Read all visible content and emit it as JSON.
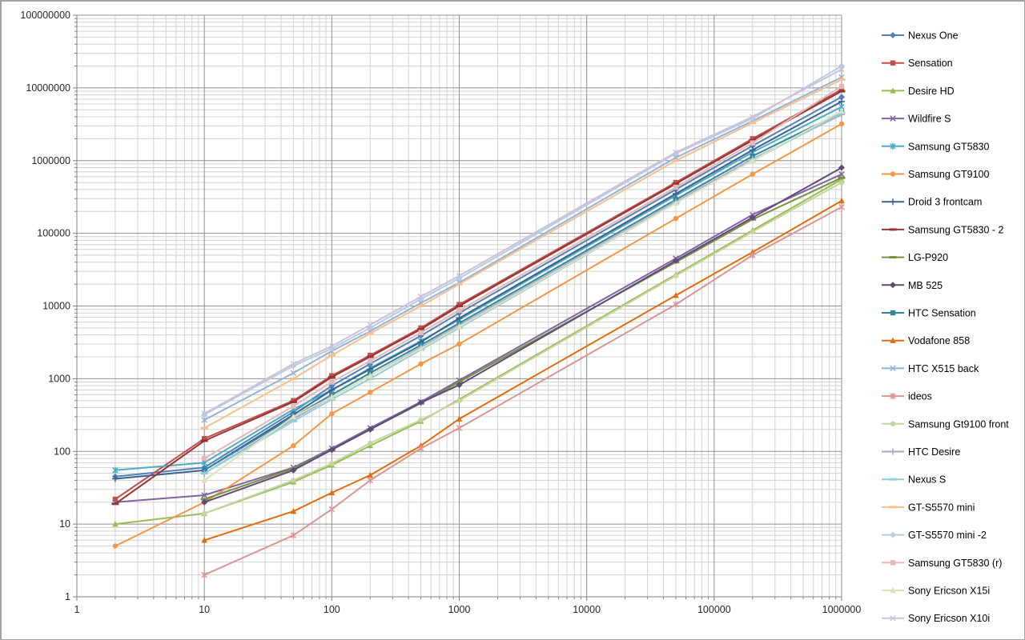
{
  "window": {
    "background": "#FFFFFF",
    "border_color": "#A3A3A3"
  },
  "chart_data": {
    "type": "line",
    "title": "",
    "x_scale": "log",
    "y_scale": "log",
    "xlim": [
      1,
      1000000
    ],
    "ylim": [
      1,
      100000000
    ],
    "x_tick_labels": [
      "1",
      "10",
      "100",
      "1000",
      "10000",
      "100000",
      "1000000"
    ],
    "y_tick_labels": [
      "1",
      "10",
      "100",
      "1000",
      "10000",
      "100000",
      "1000000",
      "10000000",
      "100000000"
    ],
    "grid": {
      "show_minor": true,
      "major_color": "#909090",
      "minor_color": "#D2D2D2"
    },
    "axis_color": "#808080",
    "tick_label_color": "#262626",
    "legend": {
      "position": "right",
      "text_color": "#000000"
    },
    "series": [
      {
        "name": "Nexus One",
        "color": "#4F81BD",
        "marker": "diamond",
        "points": [
          [
            2,
            45
          ],
          [
            10,
            60
          ],
          [
            50,
            350
          ],
          [
            100,
            800
          ],
          [
            200,
            1600
          ],
          [
            500,
            3900
          ],
          [
            1000,
            8000
          ],
          [
            50000,
            400000
          ],
          [
            200000,
            1600000
          ],
          [
            1000000,
            7500000
          ]
        ]
      },
      {
        "name": "Sensation",
        "color": "#C0504D",
        "marker": "square",
        "points": [
          [
            2,
            22
          ],
          [
            10,
            150
          ],
          [
            50,
            500
          ],
          [
            100,
            1100
          ],
          [
            200,
            2100
          ],
          [
            500,
            5000
          ],
          [
            1000,
            10500
          ],
          [
            50000,
            500000
          ],
          [
            200000,
            2000000
          ],
          [
            1000000,
            9500000
          ]
        ]
      },
      {
        "name": "Desire HD",
        "color": "#9BBB59",
        "marker": "triangle",
        "points": [
          [
            2,
            10
          ],
          [
            10,
            14
          ],
          [
            50,
            38
          ],
          [
            100,
            65
          ],
          [
            200,
            120
          ],
          [
            500,
            260
          ],
          [
            1000,
            520
          ],
          [
            50000,
            27000
          ],
          [
            200000,
            110000
          ],
          [
            1000000,
            550000
          ]
        ]
      },
      {
        "name": "Wildfire S",
        "color": "#8064A2",
        "marker": "x",
        "points": [
          [
            2,
            20
          ],
          [
            10,
            25
          ],
          [
            50,
            60
          ],
          [
            100,
            110
          ],
          [
            200,
            210
          ],
          [
            500,
            480
          ],
          [
            1000,
            950
          ],
          [
            50000,
            45000
          ],
          [
            200000,
            180000
          ],
          [
            1000000,
            650000
          ]
        ]
      },
      {
        "name": "Samsung GT5830",
        "color": "#4BACC6",
        "marker": "asterisk",
        "points": [
          [
            2,
            55
          ],
          [
            10,
            70
          ],
          [
            50,
            380
          ],
          [
            100,
            700
          ],
          [
            200,
            1400
          ],
          [
            500,
            3300
          ],
          [
            1000,
            6500
          ],
          [
            50000,
            330000
          ],
          [
            200000,
            1300000
          ],
          [
            1000000,
            5500000
          ]
        ]
      },
      {
        "name": "Samsung GT9100",
        "color": "#F79646",
        "marker": "circle",
        "points": [
          [
            2,
            5
          ],
          [
            10,
            20
          ],
          [
            50,
            120
          ],
          [
            100,
            330
          ],
          [
            200,
            650
          ],
          [
            500,
            1600
          ],
          [
            1000,
            3000
          ],
          [
            50000,
            160000
          ],
          [
            200000,
            650000
          ],
          [
            1000000,
            3200000
          ]
        ]
      },
      {
        "name": "Droid 3 frontcam",
        "color": "#38618C",
        "marker": "plus",
        "points": [
          [
            2,
            42
          ],
          [
            10,
            55
          ],
          [
            50,
            320
          ],
          [
            100,
            700
          ],
          [
            200,
            1350
          ],
          [
            500,
            3200
          ],
          [
            1000,
            6800
          ],
          [
            50000,
            350000
          ],
          [
            200000,
            1400000
          ],
          [
            1000000,
            6500000
          ]
        ]
      },
      {
        "name": "Samsung GT5830 - 2",
        "color": "#943634",
        "marker": "dash",
        "points": [
          [
            2,
            19
          ],
          [
            10,
            140
          ],
          [
            50,
            480
          ],
          [
            100,
            1050
          ],
          [
            200,
            2000
          ],
          [
            500,
            4800
          ],
          [
            1000,
            10000
          ],
          [
            50000,
            480000
          ],
          [
            200000,
            1900000
          ],
          [
            1000000,
            9000000
          ]
        ]
      },
      {
        "name": "LG-P920",
        "color": "#76923C",
        "marker": "dash",
        "points": [
          [
            10,
            22
          ],
          [
            50,
            58
          ],
          [
            100,
            105
          ],
          [
            200,
            200
          ],
          [
            500,
            460
          ],
          [
            1000,
            900
          ],
          [
            50000,
            40000
          ],
          [
            200000,
            155000
          ],
          [
            1000000,
            580000
          ]
        ]
      },
      {
        "name": "MB 525",
        "color": "#604A7B",
        "marker": "diamond",
        "points": [
          [
            10,
            20
          ],
          [
            50,
            55
          ],
          [
            100,
            105
          ],
          [
            200,
            200
          ],
          [
            500,
            470
          ],
          [
            1000,
            820
          ],
          [
            50000,
            42000
          ],
          [
            200000,
            165000
          ],
          [
            1000000,
            800000
          ]
        ]
      },
      {
        "name": "HTC Sensation",
        "color": "#31859C",
        "marker": "square",
        "points": [
          [
            10,
            55
          ],
          [
            50,
            300
          ],
          [
            100,
            600
          ],
          [
            200,
            1200
          ],
          [
            500,
            2900
          ],
          [
            1000,
            5800
          ],
          [
            50000,
            290000
          ],
          [
            200000,
            1150000
          ],
          [
            1000000,
            4600000
          ]
        ]
      },
      {
        "name": "Vodafone 858",
        "color": "#E36C0A",
        "marker": "triangle",
        "points": [
          [
            10,
            6
          ],
          [
            50,
            15
          ],
          [
            100,
            27
          ],
          [
            200,
            47
          ],
          [
            500,
            120
          ],
          [
            1000,
            280
          ],
          [
            50000,
            14000
          ],
          [
            200000,
            55000
          ],
          [
            1000000,
            280000
          ]
        ]
      },
      {
        "name": "HTC X515 back",
        "color": "#95B3D7",
        "marker": "x",
        "points": [
          [
            10,
            270
          ],
          [
            50,
            1200
          ],
          [
            100,
            2400
          ],
          [
            200,
            4500
          ],
          [
            500,
            11000
          ],
          [
            1000,
            21000
          ],
          [
            50000,
            1100000
          ],
          [
            200000,
            3500000
          ],
          [
            1000000,
            14000000
          ]
        ]
      },
      {
        "name": "ideos",
        "color": "#D99694",
        "marker": "asterisk",
        "points": [
          [
            10,
            2
          ],
          [
            50,
            7
          ],
          [
            100,
            16
          ],
          [
            200,
            40
          ],
          [
            500,
            110
          ],
          [
            1000,
            210
          ],
          [
            50000,
            10500
          ],
          [
            200000,
            50000
          ],
          [
            1000000,
            230000
          ]
        ]
      },
      {
        "name": "Samsung Gt9100 front",
        "color": "#C3D69B",
        "marker": "circle",
        "points": [
          [
            10,
            14
          ],
          [
            50,
            40
          ],
          [
            100,
            68
          ],
          [
            200,
            130
          ],
          [
            500,
            270
          ],
          [
            1000,
            500
          ],
          [
            50000,
            26000
          ],
          [
            200000,
            105000
          ],
          [
            1000000,
            500000
          ]
        ]
      },
      {
        "name": "HTC Desire",
        "color": "#B2A1C7",
        "marker": "plus",
        "points": [
          [
            10,
            50
          ],
          [
            50,
            280
          ],
          [
            100,
            560
          ],
          [
            200,
            1100
          ],
          [
            500,
            2700
          ],
          [
            1000,
            5400
          ],
          [
            50000,
            270000
          ],
          [
            200000,
            1050000
          ],
          [
            1000000,
            4300000
          ]
        ]
      },
      {
        "name": "Nexus S",
        "color": "#92CDDC",
        "marker": "dash",
        "points": [
          [
            10,
            50
          ],
          [
            50,
            260
          ],
          [
            100,
            520
          ],
          [
            200,
            1000
          ],
          [
            500,
            2500
          ],
          [
            1000,
            5000
          ],
          [
            50000,
            260000
          ],
          [
            200000,
            1000000
          ],
          [
            1000000,
            4500000
          ]
        ]
      },
      {
        "name": "GT-S5570 mini",
        "color": "#FABF8F",
        "marker": "dash",
        "points": [
          [
            10,
            210
          ],
          [
            50,
            1000
          ],
          [
            100,
            2100
          ],
          [
            200,
            4200
          ],
          [
            500,
            10000
          ],
          [
            1000,
            20000
          ],
          [
            50000,
            1000000
          ],
          [
            200000,
            3300000
          ],
          [
            1000000,
            13000000
          ]
        ]
      },
      {
        "name": "GT-S5570 mini -2",
        "color": "#B8CCE4",
        "marker": "diamond",
        "points": [
          [
            10,
            320
          ],
          [
            50,
            1500
          ],
          [
            100,
            2600
          ],
          [
            200,
            5000
          ],
          [
            500,
            12500
          ],
          [
            1000,
            24000
          ],
          [
            50000,
            1250000
          ],
          [
            200000,
            3800000
          ],
          [
            1000000,
            20000000
          ]
        ]
      },
      {
        "name": "Samsung GT5830 (r)",
        "color": "#E5B9B7",
        "marker": "square",
        "points": [
          [
            10,
            80
          ],
          [
            50,
            420
          ],
          [
            100,
            900
          ],
          [
            200,
            1750
          ],
          [
            500,
            4300
          ],
          [
            1000,
            8700
          ],
          [
            50000,
            430000
          ],
          [
            200000,
            1750000
          ],
          [
            1000000,
            10500000
          ]
        ]
      },
      {
        "name": "Sony Ericson X15i",
        "color": "#D7E4BC",
        "marker": "triangle",
        "points": [
          [
            10,
            40
          ],
          [
            50,
            300
          ],
          [
            100,
            560
          ],
          [
            200,
            1100
          ],
          [
            500,
            2600
          ],
          [
            1000,
            5200
          ],
          [
            50000,
            260000
          ],
          [
            200000,
            1000000
          ],
          [
            1000000,
            4800000
          ]
        ]
      },
      {
        "name": "Sony Ericson X10i",
        "color": "#CCC0DA",
        "marker": "x",
        "points": [
          [
            10,
            330
          ],
          [
            50,
            1600
          ],
          [
            100,
            2800
          ],
          [
            200,
            5500
          ],
          [
            500,
            13500
          ],
          [
            1000,
            26000
          ],
          [
            50000,
            1300000
          ],
          [
            200000,
            4000000
          ],
          [
            1000000,
            18000000
          ]
        ]
      }
    ]
  }
}
